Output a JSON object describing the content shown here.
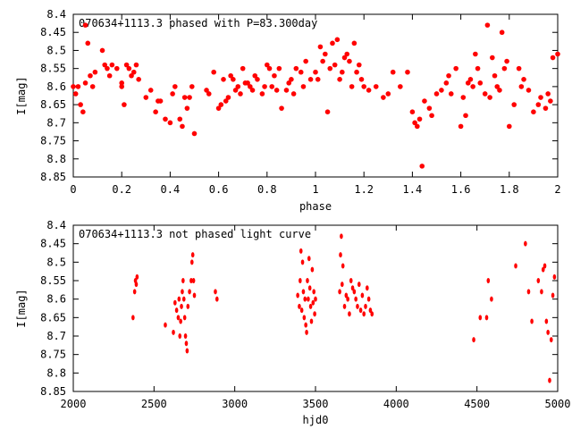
{
  "chart_data": [
    {
      "type": "scatter",
      "title": "070634+1113.3 phased with P=83.300day",
      "xlabel": "phase",
      "ylabel": "I[mag]",
      "xlim": [
        0,
        2
      ],
      "ylim": [
        8.4,
        8.85
      ],
      "y_inverted": true,
      "xticks": [
        "0",
        "0.2",
        "0.4",
        "0.6",
        "0.8",
        "1",
        "1.2",
        "1.4",
        "1.6",
        "1.8",
        "2"
      ],
      "yticks": [
        "8.4",
        "8.45",
        "8.5",
        "8.55",
        "8.6",
        "8.65",
        "8.7",
        "8.75",
        "8.8",
        "8.85"
      ],
      "grid": false,
      "marker_color": "#ff0000",
      "x": [
        0.0,
        0.01,
        0.02,
        0.03,
        0.04,
        0.05,
        0.05,
        0.06,
        0.07,
        0.08,
        0.09,
        0.12,
        0.13,
        0.14,
        0.15,
        0.16,
        0.18,
        0.2,
        0.2,
        0.21,
        0.22,
        0.23,
        0.24,
        0.25,
        0.26,
        0.27,
        0.3,
        0.32,
        0.34,
        0.35,
        0.36,
        0.38,
        0.4,
        0.41,
        0.42,
        0.44,
        0.45,
        0.46,
        0.47,
        0.48,
        0.49,
        0.5,
        0.55,
        0.56,
        0.58,
        0.6,
        0.61,
        0.62,
        0.63,
        0.64,
        0.65,
        0.66,
        0.67,
        0.68,
        0.69,
        0.7,
        0.71,
        0.72,
        0.73,
        0.74,
        0.75,
        0.76,
        0.78,
        0.79,
        0.8,
        0.81,
        0.82,
        0.83,
        0.84,
        0.85,
        0.86,
        0.88,
        0.89,
        0.9,
        0.91,
        0.92,
        0.94,
        0.95,
        0.96,
        0.98,
        1.0,
        1.01,
        1.02,
        1.03,
        1.04,
        1.05,
        1.06,
        1.07,
        1.08,
        1.09,
        1.1,
        1.11,
        1.12,
        1.13,
        1.14,
        1.15,
        1.16,
        1.17,
        1.18,
        1.19,
        1.2,
        1.22,
        1.25,
        1.28,
        1.3,
        1.32,
        1.35,
        1.38,
        1.4,
        1.41,
        1.42,
        1.43,
        1.44,
        1.45,
        1.47,
        1.48,
        1.5,
        1.52,
        1.54,
        1.55,
        1.56,
        1.58,
        1.6,
        1.61,
        1.62,
        1.63,
        1.64,
        1.65,
        1.66,
        1.67,
        1.68,
        1.7,
        1.71,
        1.72,
        1.73,
        1.74,
        1.75,
        1.76,
        1.77,
        1.78,
        1.79,
        1.8,
        1.82,
        1.84,
        1.85,
        1.86,
        1.88,
        1.9,
        1.92,
        1.93,
        1.95,
        1.96,
        1.97,
        1.98,
        2.0
      ],
      "y": [
        8.6,
        8.62,
        8.6,
        8.65,
        8.67,
        8.59,
        8.43,
        8.48,
        8.57,
        8.6,
        8.56,
        8.5,
        8.54,
        8.55,
        8.57,
        8.54,
        8.55,
        8.59,
        8.6,
        8.65,
        8.54,
        8.55,
        8.57,
        8.56,
        8.54,
        8.58,
        8.63,
        8.61,
        8.67,
        8.64,
        8.64,
        8.69,
        8.7,
        8.62,
        8.6,
        8.69,
        8.71,
        8.63,
        8.66,
        8.63,
        8.6,
        8.73,
        8.61,
        8.62,
        8.56,
        8.66,
        8.65,
        8.58,
        8.64,
        8.63,
        8.57,
        8.58,
        8.61,
        8.6,
        8.62,
        8.55,
        8.59,
        8.59,
        8.6,
        8.61,
        8.57,
        8.58,
        8.62,
        8.6,
        8.54,
        8.55,
        8.6,
        8.57,
        8.61,
        8.55,
        8.66,
        8.61,
        8.59,
        8.58,
        8.62,
        8.55,
        8.56,
        8.6,
        8.53,
        8.58,
        8.56,
        8.58,
        8.49,
        8.53,
        8.51,
        8.67,
        8.55,
        8.48,
        8.54,
        8.47,
        8.58,
        8.56,
        8.52,
        8.51,
        8.53,
        8.6,
        8.48,
        8.56,
        8.54,
        8.58,
        8.6,
        8.61,
        8.6,
        8.63,
        8.62,
        8.56,
        8.6,
        8.56,
        8.67,
        8.7,
        8.71,
        8.69,
        8.82,
        8.64,
        8.66,
        8.68,
        8.62,
        8.61,
        8.59,
        8.57,
        8.62,
        8.55,
        8.71,
        8.63,
        8.68,
        8.59,
        8.58,
        8.6,
        8.51,
        8.55,
        8.59,
        8.62,
        8.43,
        8.63,
        8.52,
        8.57,
        8.6,
        8.61,
        8.45,
        8.55,
        8.53,
        8.71,
        8.65,
        8.55,
        8.6,
        8.58,
        8.61,
        8.67,
        8.65,
        8.63,
        8.66,
        8.62,
        8.64,
        8.52,
        8.51
      ]
    },
    {
      "type": "scatter",
      "title": "070634+1113.3 not phased light curve",
      "xlabel": "hjd0",
      "ylabel": "I[mag]",
      "xlim": [
        2000,
        5000
      ],
      "ylim": [
        8.4,
        8.85
      ],
      "y_inverted": true,
      "xticks": [
        "2000",
        "2500",
        "3000",
        "3500",
        "4000",
        "4500",
        "5000"
      ],
      "yticks": [
        "8.4",
        "8.45",
        "8.5",
        "8.55",
        "8.6",
        "8.65",
        "8.7",
        "8.75",
        "8.8",
        "8.85"
      ],
      "grid": false,
      "marker_color": "#ff0000",
      "x": [
        2370,
        2380,
        2385,
        2390,
        2395,
        2570,
        2620,
        2630,
        2640,
        2650,
        2655,
        2660,
        2665,
        2670,
        2675,
        2680,
        2685,
        2690,
        2695,
        2700,
        2705,
        2710,
        2720,
        2730,
        2735,
        2740,
        2745,
        2750,
        2880,
        2890,
        3390,
        3400,
        3405,
        3410,
        3415,
        3420,
        3425,
        3430,
        3435,
        3440,
        3445,
        3450,
        3455,
        3460,
        3465,
        3470,
        3475,
        3480,
        3485,
        3490,
        3495,
        3500,
        3650,
        3655,
        3660,
        3665,
        3670,
        3680,
        3690,
        3700,
        3710,
        3720,
        3730,
        3740,
        3750,
        3760,
        3770,
        3780,
        3790,
        3800,
        3810,
        3820,
        3830,
        3840,
        3850,
        4480,
        4520,
        4560,
        4570,
        4590,
        4740,
        4800,
        4820,
        4840,
        4880,
        4900,
        4910,
        4920,
        4930,
        4940,
        4950,
        4960,
        4970,
        4980
      ],
      "y": [
        8.65,
        8.58,
        8.55,
        8.56,
        8.54,
        8.67,
        8.69,
        8.61,
        8.63,
        8.65,
        8.6,
        8.7,
        8.66,
        8.62,
        8.58,
        8.55,
        8.6,
        8.65,
        8.7,
        8.72,
        8.74,
        8.62,
        8.58,
        8.55,
        8.5,
        8.48,
        8.55,
        8.59,
        8.58,
        8.6,
        8.59,
        8.62,
        8.55,
        8.47,
        8.63,
        8.5,
        8.58,
        8.65,
        8.6,
        8.67,
        8.69,
        8.55,
        8.6,
        8.49,
        8.57,
        8.62,
        8.66,
        8.52,
        8.61,
        8.58,
        8.64,
        8.6,
        8.58,
        8.48,
        8.43,
        8.56,
        8.51,
        8.62,
        8.59,
        8.6,
        8.64,
        8.55,
        8.57,
        8.58,
        8.6,
        8.62,
        8.56,
        8.63,
        8.59,
        8.64,
        8.62,
        8.57,
        8.6,
        8.63,
        8.64,
        8.71,
        8.65,
        8.65,
        8.55,
        8.6,
        8.51,
        8.45,
        8.58,
        8.66,
        8.55,
        8.58,
        8.52,
        8.51,
        8.66,
        8.69,
        8.82,
        8.71,
        8.59,
        8.54
      ]
    }
  ]
}
